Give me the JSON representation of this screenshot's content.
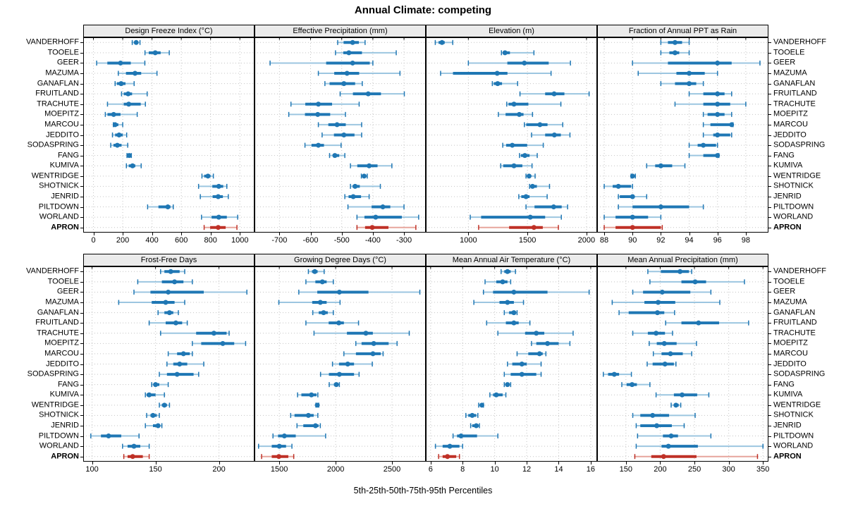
{
  "title": "Annual Climate: competing",
  "xlabel": "5th-25th-50th-75th-95th Percentiles",
  "colors": {
    "series_main": "#1f77b4",
    "series_light": "#9cc6e0",
    "highlight_main": "#bf3026",
    "highlight_light": "#e7a59c",
    "gridline": "#c4c4c4",
    "strip_bg": "#ebebeb",
    "border": "#000000"
  },
  "chart_data": {
    "type": "dotplot-intervals",
    "title": "Annual Climate: competing",
    "xlabel": "5th-25th-50th-75th-95th Percentiles",
    "percentiles": [
      "5th",
      "25th",
      "50th",
      "75th",
      "95th"
    ],
    "panel_grid": [
      2,
      4
    ],
    "legend_position": "none",
    "grid": "dotted",
    "highlight_site": "APRON",
    "sites": [
      "VANDERHOFF",
      "TOOELE",
      "GEER",
      "MAZUMA",
      "GANAFLAN",
      "FRUITLAND",
      "TRACHUTE",
      "MOEPITZ",
      "MARCOU",
      "JEDDITO",
      "SODASPRING",
      "FANG",
      "KUMIVA",
      "WENTRIDGE",
      "SHOTNICK",
      "JENRID",
      "PILTDOWN",
      "WORLAND",
      "APRON"
    ],
    "panels": [
      {
        "title": "Design Freeze Index (°C)",
        "ticks": [
          0,
          200,
          400,
          600,
          800,
          1000
        ],
        "xlim": [
          -70,
          1100
        ],
        "values": [
          [
            265,
            281,
            292,
            303,
            318
          ],
          [
            352,
            378,
            422,
            459,
            518
          ],
          [
            22,
            95,
            185,
            255,
            351
          ],
          [
            170,
            222,
            284,
            326,
            434
          ],
          [
            148,
            160,
            189,
            219,
            278
          ],
          [
            192,
            207,
            237,
            264,
            367
          ],
          [
            96,
            207,
            241,
            323,
            355
          ],
          [
            81,
            96,
            138,
            185,
            299
          ],
          [
            136,
            140,
            148,
            170,
            200
          ],
          [
            130,
            148,
            175,
            200,
            227
          ],
          [
            118,
            137,
            163,
            192,
            234
          ],
          [
            229,
            238,
            244,
            251,
            259
          ],
          [
            225,
            241,
            267,
            286,
            326
          ],
          [
            741,
            756,
            782,
            800,
            819
          ],
          [
            718,
            812,
            856,
            886,
            911
          ],
          [
            730,
            814,
            852,
            884,
            921
          ],
          [
            370,
            444,
            508,
            526,
            545
          ],
          [
            738,
            807,
            856,
            911,
            985
          ],
          [
            756,
            797,
            852,
            903,
            980
          ]
        ]
      },
      {
        "title": "Effective Precipitation (mm)",
        "ticks": [
          -700,
          -600,
          -500,
          -400,
          -300
        ],
        "xlim": [
          -780,
          -230
        ],
        "values": [
          [
            -513,
            -494,
            -465,
            -445,
            -425
          ],
          [
            -520,
            -495,
            -477,
            -435,
            -325
          ],
          [
            -730,
            -550,
            -465,
            -410,
            -400
          ],
          [
            -575,
            -524,
            -483,
            -444,
            -313
          ],
          [
            -554,
            -539,
            -493,
            -457,
            -434
          ],
          [
            -505,
            -464,
            -415,
            -374,
            -299
          ],
          [
            -663,
            -617,
            -575,
            -531,
            -444
          ],
          [
            -670,
            -618,
            -577,
            -537,
            -488
          ],
          [
            -575,
            -543,
            -515,
            -487,
            -436
          ],
          [
            -563,
            -525,
            -493,
            -459,
            -436
          ],
          [
            -618,
            -597,
            -575,
            -557,
            -502
          ],
          [
            -539,
            -528,
            -522,
            -508,
            -490
          ],
          [
            -472,
            -450,
            -412,
            -385,
            -339
          ],
          [
            -437,
            -432,
            -428,
            -424,
            -418
          ],
          [
            -472,
            -465,
            -457,
            -442,
            -376
          ],
          [
            -490,
            -478,
            -463,
            -438,
            -412
          ],
          [
            -480,
            -404,
            -368,
            -344,
            -300
          ],
          [
            -451,
            -427,
            -391,
            -307,
            -253
          ],
          [
            -451,
            -425,
            -402,
            -350,
            -262
          ]
        ]
      },
      {
        "title": "Elevation (m)",
        "ticks": [
          1000,
          1500,
          2000
        ],
        "xlim": [
          640,
          2090
        ],
        "values": [
          [
            720,
            748,
            777,
            800,
            868
          ],
          [
            1280,
            1292,
            1310,
            1352,
            1555
          ],
          [
            1000,
            1330,
            1474,
            1680,
            1864
          ],
          [
            765,
            870,
            1244,
            1331,
            1700
          ],
          [
            1203,
            1215,
            1248,
            1285,
            1417
          ],
          [
            1437,
            1650,
            1726,
            1813,
            2022
          ],
          [
            1325,
            1340,
            1386,
            1508,
            1783
          ],
          [
            1254,
            1315,
            1431,
            1467,
            1543
          ],
          [
            1474,
            1490,
            1606,
            1670,
            1799
          ],
          [
            1535,
            1650,
            1728,
            1783,
            1860
          ],
          [
            1291,
            1320,
            1372,
            1498,
            1634
          ],
          [
            1433,
            1445,
            1478,
            1518,
            1583
          ],
          [
            1274,
            1295,
            1386,
            1457,
            1539
          ],
          [
            1488,
            1500,
            1514,
            1530,
            1565
          ],
          [
            1518,
            1525,
            1543,
            1580,
            1687
          ],
          [
            1427,
            1448,
            1488,
            1518,
            1667
          ],
          [
            1488,
            1560,
            1722,
            1790,
            1840
          ],
          [
            1016,
            1108,
            1524,
            1650,
            1787
          ],
          [
            1087,
            1345,
            1555,
            1630,
            1762
          ]
        ]
      },
      {
        "title": "Fraction of Annual PPT as Rain",
        "ticks": [
          88,
          90,
          92,
          94,
          96,
          98
        ],
        "xlim": [
          87.5,
          99.6
        ],
        "values": [
          [
            92,
            92.5,
            93,
            93.5,
            94
          ],
          [
            92,
            92.6,
            93,
            93.3,
            94
          ],
          [
            90,
            92.5,
            96,
            97,
            99
          ],
          [
            90.4,
            93.1,
            94,
            95.1,
            96
          ],
          [
            92,
            93,
            94,
            94.5,
            95
          ],
          [
            94,
            95,
            96,
            96.5,
            97
          ],
          [
            93,
            95,
            96,
            96.9,
            98
          ],
          [
            95,
            95.3,
            96,
            96.5,
            97
          ],
          [
            95,
            95.5,
            97,
            97,
            97.1
          ],
          [
            95,
            95.7,
            96,
            96.9,
            97
          ],
          [
            94,
            94.6,
            95,
            95.9,
            96
          ],
          [
            94,
            95,
            96,
            96,
            96.1
          ],
          [
            91,
            91.6,
            92,
            92.8,
            93.7
          ],
          [
            89.9,
            90,
            90,
            90.1,
            90.2
          ],
          [
            88,
            88.6,
            89,
            89.9,
            90
          ],
          [
            89,
            89.1,
            90,
            90.1,
            91
          ],
          [
            89,
            90,
            92,
            94,
            95
          ],
          [
            88,
            88.8,
            90,
            91.1,
            92
          ],
          [
            88,
            88.8,
            90,
            92,
            92.1
          ]
        ]
      },
      {
        "title": "Frost-Free Days",
        "ticks": [
          100,
          150,
          200
        ],
        "xlim": [
          93,
          228
        ],
        "values": [
          [
            154,
            157,
            162,
            169,
            173
          ],
          [
            136,
            155,
            165,
            172,
            179
          ],
          [
            133,
            146,
            160,
            188,
            222
          ],
          [
            121,
            147,
            158,
            165,
            173
          ],
          [
            152,
            157,
            161,
            164,
            168
          ],
          [
            145,
            158,
            166,
            171,
            175
          ],
          [
            154,
            182,
            196,
            206,
            208
          ],
          [
            179,
            186,
            203,
            212,
            221
          ],
          [
            160,
            167,
            172,
            177,
            179
          ],
          [
            159,
            164,
            169,
            175,
            188
          ],
          [
            153,
            159,
            167,
            180,
            184
          ],
          [
            147,
            149,
            150,
            153,
            160
          ],
          [
            142,
            143,
            145,
            150,
            157
          ],
          [
            153,
            155,
            157,
            159,
            161
          ],
          [
            143,
            146,
            148,
            151,
            153
          ],
          [
            142,
            148,
            152,
            153,
            155
          ],
          [
            99,
            107,
            113,
            123,
            137
          ],
          [
            124,
            128,
            133,
            138,
            145
          ],
          [
            125,
            128,
            132,
            140,
            145
          ]
        ]
      },
      {
        "title": "Growing Degree Days (°C)",
        "ticks": [
          1500,
          2000,
          2500
        ],
        "xlim": [
          1280,
          2800
        ],
        "values": [
          [
            1758,
            1790,
            1815,
            1840,
            1898
          ],
          [
            1736,
            1820,
            1882,
            1920,
            1979
          ],
          [
            1673,
            1837,
            2033,
            2291,
            2747
          ],
          [
            1496,
            1792,
            1864,
            1920,
            2039
          ],
          [
            1797,
            1850,
            1893,
            1930,
            1979
          ],
          [
            1736,
            1938,
            2028,
            2073,
            2203
          ],
          [
            1808,
            2100,
            2268,
            2330,
            2653
          ],
          [
            2179,
            2230,
            2338,
            2470,
            2545
          ],
          [
            2073,
            2180,
            2331,
            2400,
            2421
          ],
          [
            1972,
            2030,
            2107,
            2163,
            2325
          ],
          [
            1866,
            1940,
            2033,
            2163,
            2208
          ],
          [
            1943,
            1985,
            2006,
            2020,
            2033
          ],
          [
            1662,
            1696,
            1785,
            1830,
            1842
          ],
          [
            1825,
            1833,
            1837,
            1844,
            1850
          ],
          [
            1601,
            1635,
            1758,
            1805,
            1842
          ],
          [
            1657,
            1713,
            1821,
            1848,
            1864
          ],
          [
            1444,
            1489,
            1545,
            1646,
            1911
          ],
          [
            1316,
            1433,
            1500,
            1560,
            1612
          ],
          [
            1343,
            1433,
            1496,
            1580,
            1628
          ]
        ]
      },
      {
        "title": "Mean Annual Air Temperature (°C)",
        "ticks": [
          6,
          8,
          10,
          12,
          14,
          16
        ],
        "xlim": [
          5.7,
          16.4
        ],
        "values": [
          [
            10.4,
            10.6,
            10.8,
            11.0,
            11.3
          ],
          [
            9.4,
            10.1,
            10.5,
            10.8,
            11.0
          ],
          [
            9.3,
            9.9,
            11.2,
            13.3,
            15.9
          ],
          [
            8.7,
            10.3,
            10.8,
            11.2,
            11.8
          ],
          [
            10.6,
            10.9,
            11.2,
            11.3,
            11.4
          ],
          [
            9.5,
            10.7,
            11.2,
            11.5,
            12.2
          ],
          [
            10.2,
            11.9,
            12.6,
            13.1,
            14.9
          ],
          [
            12.3,
            12.6,
            13.3,
            14.0,
            14.7
          ],
          [
            11.4,
            12.1,
            12.8,
            13.0,
            13.2
          ],
          [
            10.8,
            11.1,
            11.7,
            12.0,
            12.9
          ],
          [
            10.6,
            11.0,
            11.7,
            12.6,
            12.9
          ],
          [
            10.6,
            10.7,
            10.8,
            10.9,
            11.0
          ],
          [
            9.7,
            9.9,
            10.1,
            10.5,
            10.7
          ],
          [
            9.0,
            9.1,
            9.2,
            9.25,
            9.3
          ],
          [
            8.2,
            8.35,
            8.6,
            8.85,
            8.95
          ],
          [
            8.5,
            8.6,
            8.85,
            9.0,
            9.05
          ],
          [
            7.4,
            7.65,
            7.9,
            8.9,
            10.2
          ],
          [
            6.3,
            6.75,
            7.2,
            7.8,
            8.0
          ],
          [
            6.5,
            6.75,
            7.05,
            7.6,
            7.8
          ]
        ]
      },
      {
        "title": "Mean Annual Precipitation (mm)",
        "ticks": [
          150,
          200,
          250,
          300,
          350
        ],
        "xlim": [
          108,
          358
        ],
        "values": [
          [
            182,
            201,
            229,
            242,
            246
          ],
          [
            185,
            231,
            251,
            267,
            323
          ],
          [
            160,
            175,
            203,
            244,
            274
          ],
          [
            130,
            177,
            197,
            222,
            287
          ],
          [
            140,
            154,
            196,
            206,
            221
          ],
          [
            208,
            231,
            256,
            286,
            329
          ],
          [
            160,
            182,
            194,
            207,
            218
          ],
          [
            184,
            195,
            206,
            224,
            253
          ],
          [
            190,
            202,
            215,
            233,
            246
          ],
          [
            181,
            189,
            207,
            220,
            223
          ],
          [
            117,
            124,
            133,
            140,
            158
          ],
          [
            144,
            151,
            159,
            166,
            185
          ],
          [
            194,
            220,
            232,
            254,
            271
          ],
          [
            216,
            220,
            223,
            227,
            230
          ],
          [
            160,
            171,
            189,
            213,
            251
          ],
          [
            165,
            171,
            195,
            217,
            235
          ],
          [
            167,
            204,
            216,
            226,
            274
          ],
          [
            165,
            202,
            212,
            255,
            350
          ],
          [
            163,
            187,
            205,
            253,
            342
          ]
        ]
      }
    ]
  }
}
